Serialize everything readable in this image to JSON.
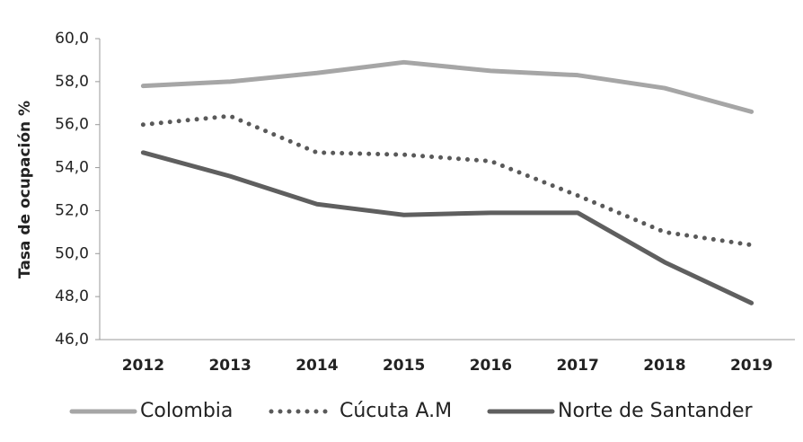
{
  "chart_data": {
    "type": "line",
    "y_label": "Tasa de ocupación %",
    "categories": [
      "2012",
      "2013",
      "2014",
      "2015",
      "2016",
      "2017",
      "2018",
      "2019"
    ],
    "series": [
      {
        "name": "Colombia",
        "color": "#a6a6a6",
        "style": "solid",
        "values": [
          57.8,
          58.0,
          58.4,
          58.9,
          58.5,
          58.3,
          57.7,
          56.6
        ]
      },
      {
        "name": "Cúcuta A.M",
        "color": "#595959",
        "style": "dotted",
        "values": [
          56.0,
          56.4,
          54.7,
          54.6,
          54.3,
          52.7,
          51.0,
          50.4
        ]
      },
      {
        "name": "Norte de Santander",
        "color": "#5f5f5f",
        "style": "solid",
        "values": [
          54.7,
          53.6,
          52.3,
          51.8,
          51.9,
          51.9,
          49.6,
          47.7
        ]
      }
    ],
    "ylim": [
      46,
      60
    ],
    "yticks": [
      {
        "value": 46,
        "label": "46,0"
      },
      {
        "value": 48,
        "label": "48,0"
      },
      {
        "value": 50,
        "label": "50,0"
      },
      {
        "value": 52,
        "label": "52,0"
      },
      {
        "value": 54,
        "label": "54,0"
      },
      {
        "value": 56,
        "label": "56,0"
      },
      {
        "value": 58,
        "label": "58,0"
      },
      {
        "value": 60,
        "label": "60,0"
      }
    ],
    "grid": false
  }
}
